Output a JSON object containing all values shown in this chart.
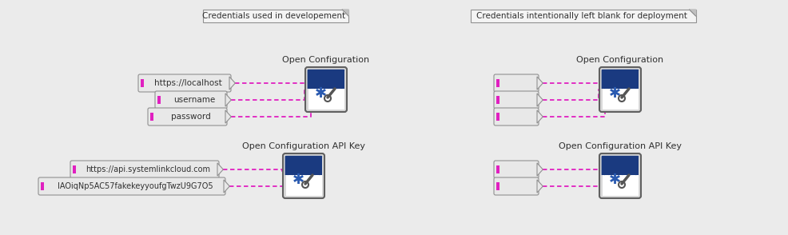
{
  "bg_color": "#ebebeb",
  "title_left": "Credentials used in developement",
  "title_right": "Credentials intentionally left blank for deployment",
  "label_open_config_1": "Open Configuration",
  "label_open_config_2": "Open Configuration",
  "label_open_config_api_1": "Open Configuration API Key",
  "label_open_config_api_2": "Open Configuration API Key",
  "inputs_left_top": [
    "https://localhost",
    "username",
    "password"
  ],
  "inputs_left_bottom": [
    "https://api.systemlinkcloud.com",
    "IAOiqNp5AC57fakekeyyoufgTwzU9G7O5"
  ],
  "pink": "#e020c0",
  "node_dark_blue": "#1a3a80",
  "node_mid_blue": "#2a5ab0",
  "node_bg": "#d8d8d8",
  "node_border": "#606060",
  "wire_color": "#e020c0",
  "text_color": "#303030",
  "box_bg": "#e8e8e8",
  "box_border": "#909090"
}
